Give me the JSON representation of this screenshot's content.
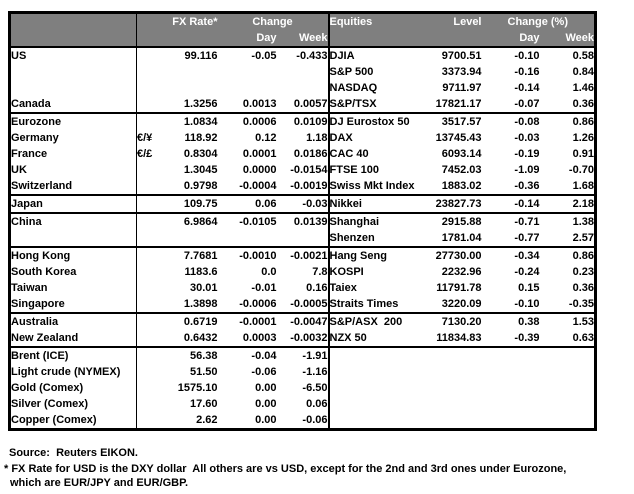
{
  "colors": {
    "header_bg": "#7f7f7f",
    "header_text": "#ffffff",
    "body_text": "#000000",
    "border": "#000000"
  },
  "header": {
    "fx_rate": "FX Rate*",
    "fx_change": "Change",
    "fx_day": "Day",
    "fx_week": "Week",
    "equities": "Equities",
    "level": "Level",
    "eq_change": "Change (%)",
    "eq_day": "Day",
    "eq_week": "Week"
  },
  "groups": [
    {
      "rows": [
        {
          "fx": [
            "US",
            "",
            "99.116",
            "-0.05",
            "-0.433"
          ],
          "eq": [
            "DJIA",
            "9700.51",
            "-0.10",
            "0.58"
          ]
        },
        {
          "fx": [
            "",
            "",
            "",
            "",
            ""
          ],
          "eq": [
            "S&P 500",
            "3373.94",
            "-0.16",
            "0.84"
          ]
        },
        {
          "fx": [
            "",
            "",
            "",
            "",
            ""
          ],
          "eq": [
            "NASDAQ",
            "9711.97",
            "-0.14",
            "1.46"
          ]
        },
        {
          "fx": [
            "Canada",
            "",
            "1.3256",
            "0.0013",
            "0.0057"
          ],
          "eq": [
            "S&P/TSX",
            "17821.17",
            "-0.07",
            "0.36"
          ]
        }
      ]
    },
    {
      "rows": [
        {
          "fx": [
            "Eurozone",
            "",
            "1.0834",
            "0.0006",
            "0.0109"
          ],
          "eq": [
            "DJ Eurostox 50",
            "3517.57",
            "-0.08",
            "0.86"
          ]
        },
        {
          "fx": [
            "Germany",
            "€/¥",
            "118.92",
            "0.12",
            "1.18"
          ],
          "indent": true,
          "eq": [
            "DAX",
            "13745.43",
            "-0.03",
            "1.26"
          ]
        },
        {
          "fx": [
            "France",
            "€/£",
            "0.8304",
            "0.0001",
            "0.0186"
          ],
          "indent": true,
          "eq": [
            "CAC 40",
            "6093.14",
            "-0.19",
            "0.91"
          ]
        },
        {
          "fx": [
            "UK",
            "",
            "1.3045",
            "0.0000",
            "-0.0154"
          ],
          "eq": [
            "FTSE 100",
            "7452.03",
            "-1.09",
            "-0.70"
          ]
        },
        {
          "fx": [
            "Switzerland",
            "",
            "0.9798",
            "-0.0004",
            "-0.0019"
          ],
          "eq": [
            "Swiss Mkt Index",
            "1883.02",
            "-0.36",
            "1.68"
          ]
        }
      ]
    },
    {
      "rows": [
        {
          "fx": [
            "Japan",
            "",
            "109.75",
            "0.06",
            "-0.03"
          ],
          "eq": [
            "Nikkei",
            "23827.73",
            "-0.14",
            "2.18"
          ]
        }
      ]
    },
    {
      "rows": [
        {
          "fx": [
            "China",
            "",
            "6.9864",
            "-0.0105",
            "0.0139"
          ],
          "eq": [
            "Shanghai",
            "2915.88",
            "-0.71",
            "1.38"
          ]
        },
        {
          "fx": [
            "",
            "",
            "",
            "",
            ""
          ],
          "eq": [
            "Shenzen",
            "1781.04",
            "-0.77",
            "2.57"
          ]
        }
      ]
    },
    {
      "rows": [
        {
          "fx": [
            "Hong Kong",
            "",
            "7.7681",
            "-0.0010",
            "-0.0021"
          ],
          "eq": [
            "Hang Seng",
            "27730.00",
            "-0.34",
            "0.86"
          ]
        },
        {
          "fx": [
            "South Korea",
            "",
            "1183.6",
            "0.0",
            "7.8"
          ],
          "eq": [
            "KOSPI",
            "2232.96",
            "-0.24",
            "0.23"
          ]
        },
        {
          "fx": [
            "Taiwan",
            "",
            "30.01",
            "-0.01",
            "0.16"
          ],
          "eq": [
            "Taiex",
            "11791.78",
            "0.15",
            "0.36"
          ]
        },
        {
          "fx": [
            "Singapore",
            "",
            "1.3898",
            "-0.0006",
            "-0.0005"
          ],
          "eq": [
            "Straits Times",
            "3220.09",
            "-0.10",
            "-0.35"
          ]
        }
      ]
    },
    {
      "rows": [
        {
          "fx": [
            "Australia",
            "",
            "0.6719",
            "-0.0001",
            "-0.0047"
          ],
          "eq": [
            "S&P/ASX  200",
            "7130.20",
            "0.38",
            "1.53"
          ]
        },
        {
          "fx": [
            "New Zealand",
            "",
            "0.6432",
            "0.0003",
            "-0.0032"
          ],
          "eq": [
            "NZX 50",
            "11834.83",
            "-0.39",
            "0.63"
          ]
        }
      ]
    },
    {
      "rows": [
        {
          "fx": [
            "Brent (ICE)",
            "",
            "56.38",
            "-0.04",
            "-1.91"
          ],
          "eq": [
            "",
            "",
            "",
            ""
          ]
        },
        {
          "fx": [
            "Light crude (NYMEX)",
            "",
            "51.50",
            "-0.06",
            "-1.16"
          ],
          "eq": [
            "",
            "",
            "",
            ""
          ]
        },
        {
          "fx": [
            "Gold (Comex)",
            "",
            "1575.10",
            "0.00",
            "-6.50"
          ],
          "eq": [
            "",
            "",
            "",
            ""
          ]
        },
        {
          "fx": [
            "Silver (Comex)",
            "",
            "17.60",
            "0.00",
            "0.06"
          ],
          "eq": [
            "",
            "",
            "",
            ""
          ]
        },
        {
          "fx": [
            "Copper (Comex)",
            "",
            "2.62",
            "0.00",
            "-0.06"
          ],
          "eq": [
            "",
            "",
            "",
            ""
          ]
        }
      ]
    }
  ],
  "footer": {
    "source": "Source:  Reuters EIKON.",
    "note1": "* FX Rate for USD is the DXY dollar  All others are vs USD, except for the 2nd and 3rd ones under Eurozone,",
    "note2": "which are EUR/JPY and EUR/GBP."
  }
}
